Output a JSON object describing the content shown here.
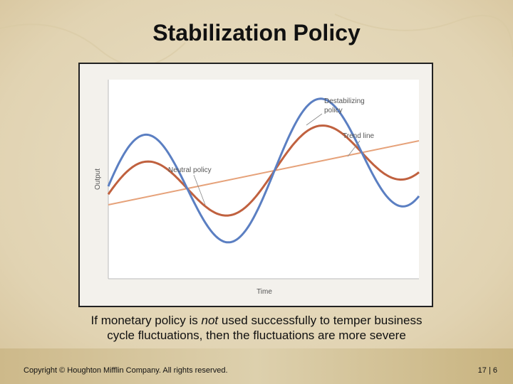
{
  "slide": {
    "title": "Stabilization Policy",
    "caption_line1_before": "If monetary policy is ",
    "caption_line1_emph": "not",
    "caption_line1_after": " used successfully to temper business",
    "caption_line2": "cycle ﬂuctuations, then the ﬂuctuations are more severe",
    "copyright": "Copyright © Houghton Mifflin Company.  All rights reserved.",
    "page_number": "17 | 6"
  },
  "figure": {
    "axis_x_label": "Time",
    "axis_y_label": "Output",
    "label_destabilizing_line1": "Destabilizing",
    "label_destabilizing_line2": "policy",
    "label_trend": "Trend line",
    "label_neutral": "Neutral policy",
    "colors": {
      "trend": "#e6a27a",
      "neutral": "#c0613f",
      "destabilizing": "#5b7fc2",
      "plot_background": "#ffffff",
      "frame_background": "#f3f1ec"
    }
  }
}
